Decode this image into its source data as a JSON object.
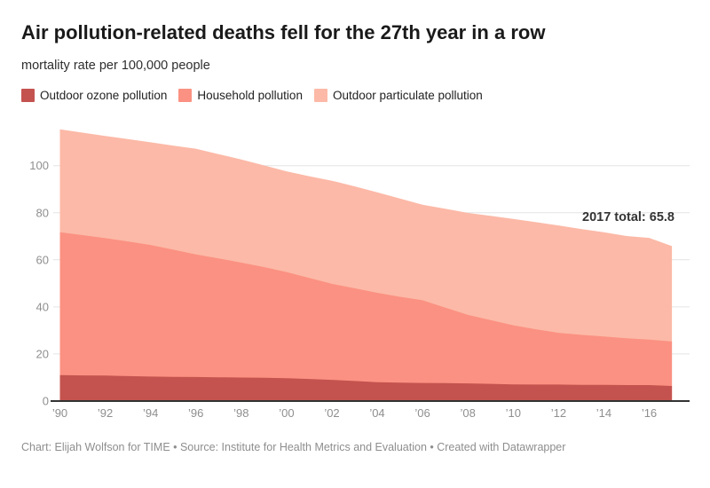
{
  "header": {
    "title": "Air pollution-related deaths fell for the 27th year in a row",
    "subtitle": "mortality rate per 100,000 people"
  },
  "footer": {
    "credit": "Chart: Elijah Wolfson for TIME • Source: Institute for Health Metrics and Evaluation • Created with Datawrapper"
  },
  "chart_data": {
    "type": "area",
    "stacked": true,
    "title": "Air pollution-related deaths fell for the 27th year in a row",
    "ylabel": "mortality rate per 100,000 people",
    "grid": "horizontal",
    "legend_position": "top",
    "ylim": [
      0,
      116
    ],
    "x": [
      1990,
      1991,
      1992,
      1993,
      1994,
      1995,
      1996,
      1997,
      1998,
      1999,
      2000,
      2001,
      2002,
      2003,
      2004,
      2005,
      2006,
      2007,
      2008,
      2009,
      2010,
      2011,
      2012,
      2013,
      2014,
      2015,
      2016,
      2017
    ],
    "series": [
      {
        "name": "Outdoor ozone pollution",
        "color": "#c4534f",
        "values": [
          11.0,
          10.9,
          10.8,
          10.6,
          10.4,
          10.3,
          10.2,
          10.1,
          10.0,
          9.9,
          9.7,
          9.4,
          9.0,
          8.5,
          8.0,
          7.8,
          7.7,
          7.6,
          7.5,
          7.3,
          7.1,
          7.0,
          7.0,
          6.9,
          6.9,
          6.8,
          6.8,
          6.4
        ]
      },
      {
        "name": "Household pollution",
        "color": "#fb9182",
        "values": [
          60.7,
          59.6,
          58.4,
          57.2,
          55.9,
          54.0,
          52.1,
          50.5,
          48.8,
          47.0,
          45.1,
          42.9,
          40.8,
          39.4,
          38.0,
          36.5,
          35.1,
          32.1,
          29.1,
          27.1,
          25.1,
          23.5,
          22.0,
          21.2,
          20.5,
          19.9,
          19.3,
          18.9
        ]
      },
      {
        "name": "Outdoor particulate pollution",
        "color": "#fcb9a7",
        "values": [
          43.7,
          43.5,
          43.4,
          43.5,
          43.6,
          44.2,
          44.9,
          44.3,
          43.8,
          43.2,
          42.8,
          43.2,
          43.8,
          43.3,
          42.7,
          41.7,
          40.6,
          42.0,
          43.3,
          44.3,
          45.2,
          45.5,
          45.6,
          45.0,
          44.3,
          43.4,
          43.2,
          40.5
        ]
      }
    ],
    "totals_note": "2017 total = 65.8",
    "y_ticks": [
      0,
      20,
      40,
      60,
      80,
      100
    ],
    "x_ticks": [
      {
        "year": 1990,
        "label": "’90"
      },
      {
        "year": 1992,
        "label": "’92"
      },
      {
        "year": 1994,
        "label": "’94"
      },
      {
        "year": 1996,
        "label": "’96"
      },
      {
        "year": 1998,
        "label": "’98"
      },
      {
        "year": 2000,
        "label": "’00"
      },
      {
        "year": 2002,
        "label": "’02"
      },
      {
        "year": 2004,
        "label": "’04"
      },
      {
        "year": 2006,
        "label": "’06"
      },
      {
        "year": 2008,
        "label": "’08"
      },
      {
        "year": 2010,
        "label": "’10"
      },
      {
        "year": 2012,
        "label": "’12"
      },
      {
        "year": 2014,
        "label": "’14"
      },
      {
        "year": 2016,
        "label": "’16"
      }
    ],
    "annotation": {
      "text": "2017 total: 65.8",
      "year": 2017,
      "value": 65.8
    },
    "style": {
      "grid_color": "#e4e4e4",
      "axis_color": "#333333",
      "tick_label_color": "#8f8f8f",
      "annotation_color": "#333333"
    }
  }
}
